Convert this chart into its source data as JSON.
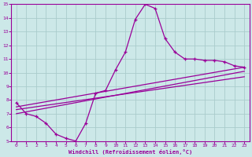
{
  "xlabel": "Windchill (Refroidissement éolien,°C)",
  "xlim": [
    -0.5,
    23.5
  ],
  "ylim": [
    5,
    15
  ],
  "xticks": [
    0,
    1,
    2,
    3,
    4,
    5,
    6,
    7,
    8,
    9,
    10,
    11,
    12,
    13,
    14,
    15,
    16,
    17,
    18,
    19,
    20,
    21,
    22,
    23
  ],
  "yticks": [
    5,
    6,
    7,
    8,
    9,
    10,
    11,
    12,
    13,
    14,
    15
  ],
  "bg_color": "#cce8e8",
  "line_color": "#990099",
  "grid_color": "#aacccc",
  "main_x": [
    0,
    1,
    2,
    3,
    4,
    5,
    6,
    7,
    8,
    9,
    10,
    11,
    12,
    13,
    14,
    15,
    16,
    17,
    18,
    19,
    20,
    21,
    22,
    23
  ],
  "main_y": [
    7.8,
    7.0,
    6.8,
    6.3,
    5.5,
    5.2,
    5.0,
    6.3,
    8.5,
    8.7,
    10.2,
    11.5,
    13.9,
    15.0,
    14.7,
    12.5,
    11.5,
    11.0,
    11.0,
    10.9,
    10.9,
    10.8,
    10.5,
    10.4
  ],
  "line1_x": [
    0,
    23
  ],
  "line1_y": [
    7.5,
    10.4
  ],
  "line2_x": [
    0,
    23
  ],
  "line2_y": [
    7.3,
    9.7
  ],
  "line3_x": [
    0,
    23
  ],
  "line3_y": [
    7.0,
    10.1
  ]
}
